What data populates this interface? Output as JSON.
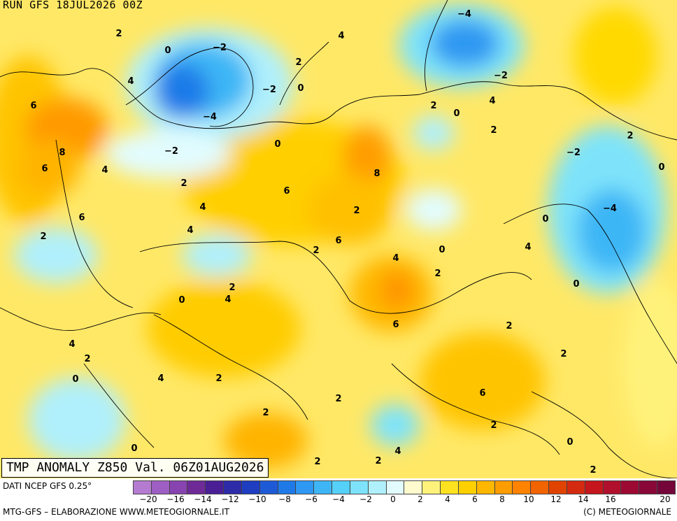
{
  "header": {
    "run_label": "RUN GFS 18JUL2026 00Z"
  },
  "map": {
    "title": "TMP ANOMALY Z850 Val. 06Z01AUG2026",
    "contour_labels": [
      "2",
      "0",
      "-2",
      "4",
      "-4",
      "-2",
      "2",
      "4",
      "0",
      "-4",
      "-2",
      "2",
      "0",
      "4",
      "2",
      "0",
      "-2",
      "-2",
      "6",
      "8",
      "6",
      "4",
      "0",
      "-4",
      "2",
      "8",
      "6",
      "2",
      "4",
      "2",
      "4",
      "6",
      "2",
      "6",
      "2",
      "0",
      "0",
      "4",
      "4",
      "0",
      "2",
      "2",
      "0",
      "4",
      "6",
      "2",
      "4",
      "2",
      "4",
      "6",
      "2",
      "0",
      "2",
      "2",
      "2",
      "2",
      "0",
      "4",
      "2",
      "2",
      "2",
      "0"
    ]
  },
  "colorbar": {
    "colors": [
      "#b57bd0",
      "#9e5fc4",
      "#8744b0",
      "#6e2b98",
      "#4a1f96",
      "#2e2ba8",
      "#1f3dc0",
      "#1f5ad6",
      "#1f7ae8",
      "#2e98f2",
      "#3eb6f6",
      "#55d0f8",
      "#7ee3fa",
      "#b0f0fc",
      "#e2fcfe",
      "#fffbcf",
      "#fff27a",
      "#ffe21f",
      "#ffd000",
      "#ffb700",
      "#ff9d00",
      "#ff8200",
      "#f26400",
      "#e04300",
      "#d42a10",
      "#c4161c",
      "#b0102c",
      "#9c0a34",
      "#880838",
      "#74063a"
    ],
    "tick_values": [
      "-20",
      "-18",
      "-16",
      "-14",
      "-12",
      "-10",
      "-8",
      "-6",
      "-4",
      "-2",
      "0",
      "2",
      "4",
      "6",
      "8",
      "10",
      "12",
      "14",
      "16",
      "18",
      "20"
    ],
    "tick_labels": [
      "−20",
      "−16",
      "−14",
      "−12",
      "−10",
      "−8",
      "−6",
      "−4",
      "−2",
      "0",
      "2",
      "4",
      "6",
      "8",
      "10",
      "12",
      "14",
      "16",
      "20"
    ]
  },
  "footer": {
    "source": "DATI NCEP GFS 0.25°",
    "credits": "MTG-GFS – ELABORAZIONE WWW.METEOGIORNALE.IT",
    "copyright": "(C) METEOGIORNALE"
  }
}
